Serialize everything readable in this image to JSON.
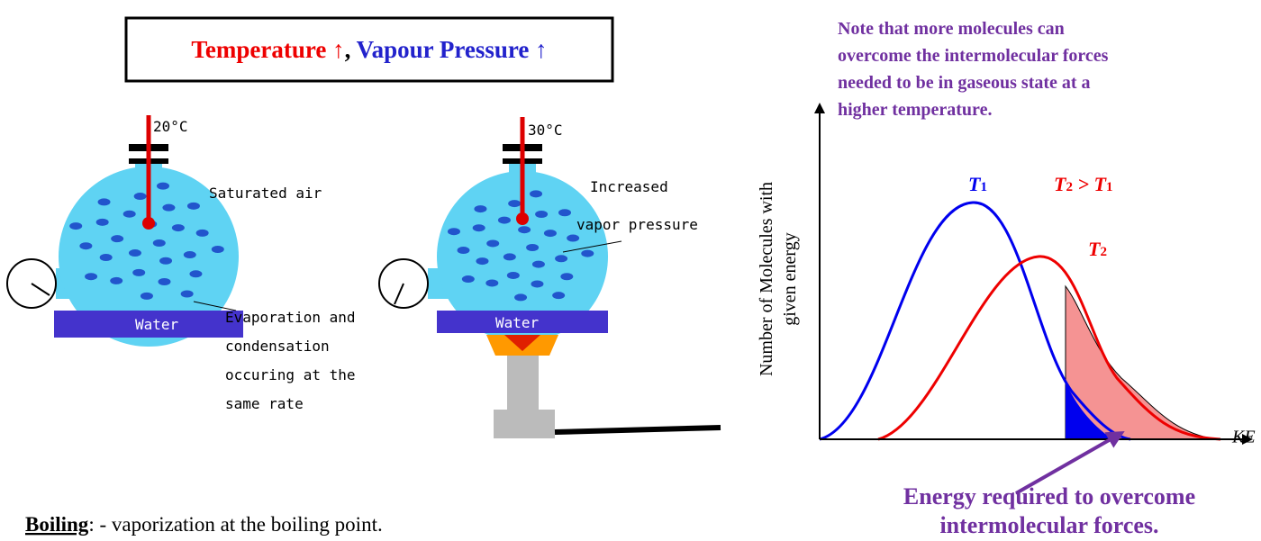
{
  "box": {
    "temperature": "Temperature ↑",
    "comma": ",",
    "pressure": "Vapour Pressure ↑"
  },
  "flask1": {
    "temp": "20°C",
    "label": "Saturated air",
    "water": "Water",
    "note": [
      "Evaporation and",
      "condensation",
      "occuring at the",
      "same rate"
    ]
  },
  "flask2": {
    "temp": "30°C",
    "label": [
      "Increased",
      "vapor pressure"
    ],
    "water": "Water"
  },
  "note": [
    "Note that more molecules can",
    "overcome the intermolecular forces",
    "needed to be in gaseous state at a",
    "higher temperature."
  ],
  "graph": {
    "y_label": [
      "Number of Molecules with",
      "given energy"
    ],
    "x_label": "KE",
    "t1": {
      "base": "T",
      "sub": "1"
    },
    "compare": {
      "left": "T",
      "left_sub": "2",
      "op": " > ",
      "right": "T",
      "right_sub": "1"
    },
    "t2": {
      "base": "T",
      "sub": "2"
    },
    "energy": [
      "Energy required to overcome",
      "intermolecular forces."
    ]
  },
  "boiling": {
    "term": "Boiling",
    "text": ": - vaporization at the boiling point."
  }
}
